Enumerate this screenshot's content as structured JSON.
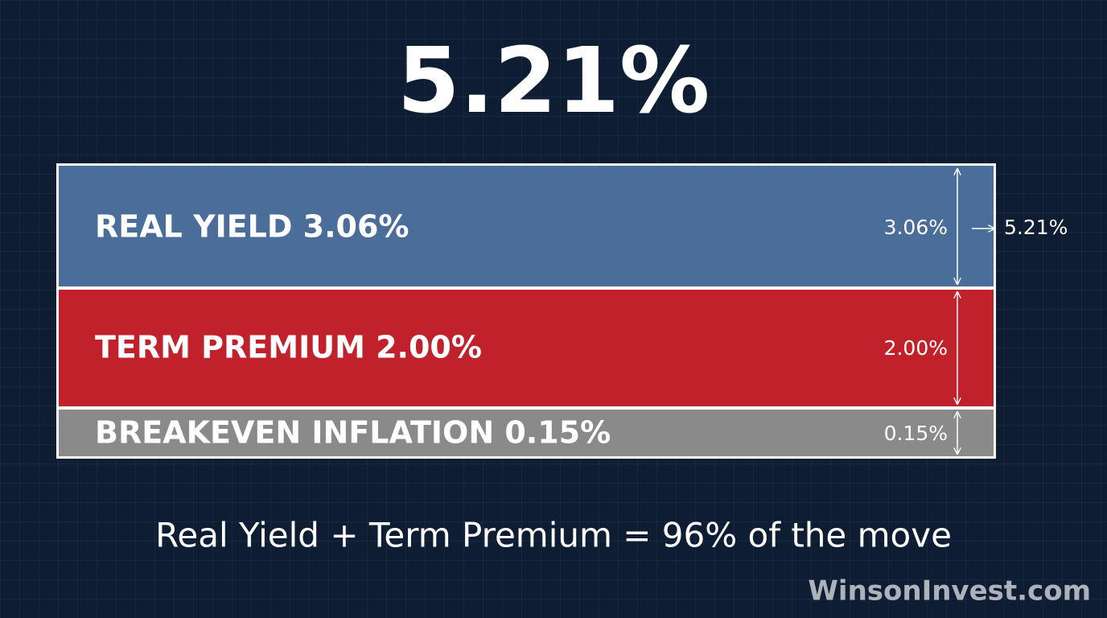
{
  "header": {
    "total": "5.21%"
  },
  "segments": [
    {
      "label": "REAL YIELD 3.06%",
      "value": "3.06%"
    },
    {
      "label": "TERM PREMIUM 2.00%",
      "value": "2.00%"
    },
    {
      "label": "BREAKEVEN INFLATION 0.15%",
      "value": "0.15%"
    }
  ],
  "total_label": "5.21%",
  "footer": "Real Yield + Term Premium = 96% of the move",
  "watermark": "WinsonInvest.com"
}
